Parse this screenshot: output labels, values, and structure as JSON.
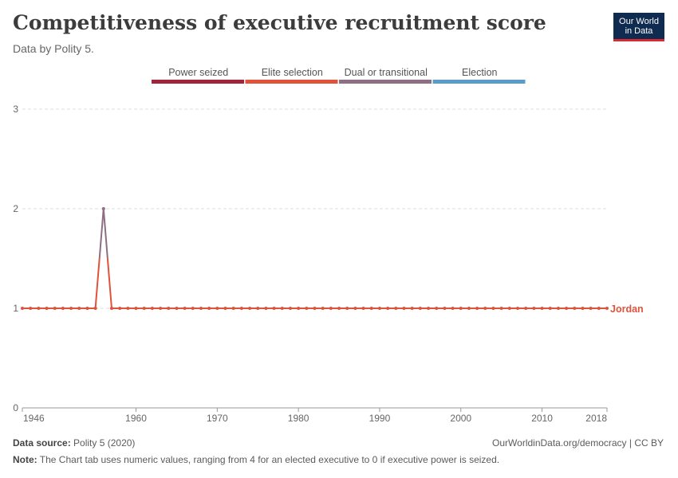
{
  "header": {
    "title": "Competitiveness of executive recruitment score",
    "subtitle": "Data by Polity 5.",
    "logo_line1": "Our World",
    "logo_line2": "in Data"
  },
  "footer": {
    "source_label": "Data source:",
    "source_text": "Polity 5 (2020)",
    "url_text": "OurWorldinData.org/democracy | CC BY",
    "note_label": "Note:",
    "note_text": "The Chart tab uses numeric values, ranging from 4 for an elected executive to 0 if executive power is seized."
  },
  "colors": {
    "power_seized": "#a2233a",
    "elite_selection": "#e0533a",
    "dual_or_transitional": "#8f6e83",
    "election": "#5b9bc9",
    "grid": "#dddddd",
    "axis_text": "#666666"
  },
  "chart_data": {
    "type": "line",
    "title": "Competitiveness of executive recruitment score",
    "subtitle": "Data by Polity 5.",
    "legend_position": "top",
    "legend": [
      {
        "label": "Power seized",
        "color": "#a2233a"
      },
      {
        "label": "Elite selection",
        "color": "#e0533a"
      },
      {
        "label": "Dual or transitional",
        "color": "#8f6e83"
      },
      {
        "label": "Election",
        "color": "#5b9bc9"
      }
    ],
    "x_ticks": [
      1946,
      1960,
      1970,
      1980,
      1990,
      2000,
      2010,
      2018
    ],
    "y_ticks": [
      0,
      1,
      2,
      3
    ],
    "xlim": [
      1946,
      2018
    ],
    "ylim": [
      0,
      3
    ],
    "grid": "horizontal dashed",
    "series": [
      {
        "name": "Jordan",
        "x": [
          1946,
          1947,
          1948,
          1949,
          1950,
          1951,
          1952,
          1953,
          1954,
          1955,
          1956,
          1957,
          1958,
          1959,
          1960,
          1961,
          1962,
          1963,
          1964,
          1965,
          1966,
          1967,
          1968,
          1969,
          1970,
          1971,
          1972,
          1973,
          1974,
          1975,
          1976,
          1977,
          1978,
          1979,
          1980,
          1981,
          1982,
          1983,
          1984,
          1985,
          1986,
          1987,
          1988,
          1989,
          1990,
          1991,
          1992,
          1993,
          1994,
          1995,
          1996,
          1997,
          1998,
          1999,
          2000,
          2001,
          2002,
          2003,
          2004,
          2005,
          2006,
          2007,
          2008,
          2009,
          2010,
          2011,
          2012,
          2013,
          2014,
          2015,
          2016,
          2017,
          2018
        ],
        "y": [
          1,
          1,
          1,
          1,
          1,
          1,
          1,
          1,
          1,
          1,
          2,
          1,
          1,
          1,
          1,
          1,
          1,
          1,
          1,
          1,
          1,
          1,
          1,
          1,
          1,
          1,
          1,
          1,
          1,
          1,
          1,
          1,
          1,
          1,
          1,
          1,
          1,
          1,
          1,
          1,
          1,
          1,
          1,
          1,
          1,
          1,
          1,
          1,
          1,
          1,
          1,
          1,
          1,
          1,
          1,
          1,
          1,
          1,
          1,
          1,
          1,
          1,
          1,
          1,
          1,
          1,
          1,
          1,
          1,
          1,
          1,
          1,
          1
        ]
      }
    ]
  }
}
